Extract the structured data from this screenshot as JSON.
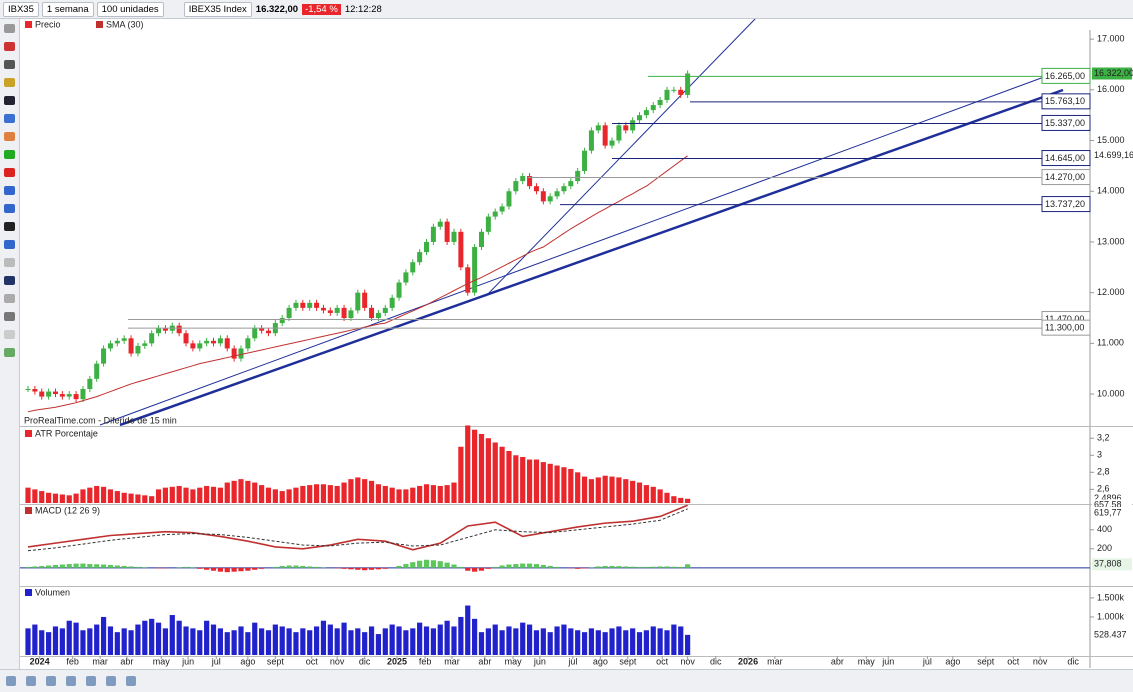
{
  "toolbar": {
    "symbol": "IBX35",
    "period": "1 semana",
    "units": "100 unidades",
    "instrument": "IBEX35 Index",
    "price": "16.322,00",
    "change": "-1,54 %",
    "time": "12:12:28"
  },
  "time_axis": {
    "xlim": [
      0,
      155
    ],
    "xticks": [
      {
        "value": 1.7,
        "label": "2024"
      },
      {
        "value": 6.5,
        "label": "feb"
      },
      {
        "value": 10.5,
        "label": "mar"
      },
      {
        "value": 14.4,
        "label": "abr"
      },
      {
        "value": 19.4,
        "label": "may"
      },
      {
        "value": 23.3,
        "label": "jun"
      },
      {
        "value": 27.4,
        "label": "jul"
      },
      {
        "value": 32,
        "label": "ago"
      },
      {
        "value": 36,
        "label": "sept"
      },
      {
        "value": 41.3,
        "label": "oct"
      },
      {
        "value": 45,
        "label": "nov"
      },
      {
        "value": 49,
        "label": "dic"
      },
      {
        "value": 53.7,
        "label": "2025"
      },
      {
        "value": 57.8,
        "label": "feb"
      },
      {
        "value": 61.7,
        "label": "mar"
      },
      {
        "value": 66.5,
        "label": "abr"
      },
      {
        "value": 70.6,
        "label": "may"
      },
      {
        "value": 74.5,
        "label": "jun"
      },
      {
        "value": 79.3,
        "label": "jul"
      },
      {
        "value": 83.3,
        "label": "ago"
      },
      {
        "value": 87.3,
        "label": "sept"
      },
      {
        "value": 92.3,
        "label": "oct"
      },
      {
        "value": 96,
        "label": "nov"
      },
      {
        "value": 100.1,
        "label": "dic"
      },
      {
        "value": 104.8,
        "label": "2026"
      },
      {
        "value": 108.7,
        "label": "mar"
      },
      {
        "value": 117.8,
        "label": "abr"
      },
      {
        "value": 122,
        "label": "may"
      },
      {
        "value": 125.2,
        "label": "jun"
      },
      {
        "value": 130.9,
        "label": "jul"
      },
      {
        "value": 134.6,
        "label": "ago"
      },
      {
        "value": 139.4,
        "label": "sept"
      },
      {
        "value": 143.4,
        "label": "oct"
      },
      {
        "value": 147.3,
        "label": "nov"
      },
      {
        "value": 152.1,
        "label": "dic"
      }
    ]
  },
  "chart_data": [
    {
      "type": "candlestick",
      "source": "ProRealTime.com - Diferido de 15 min",
      "ylim": [
        9390,
        17180
      ],
      "yticks": [
        {
          "value": 17000,
          "label": "17.000"
        },
        {
          "value": 16000,
          "label": "16.000"
        },
        {
          "value": 15000,
          "label": "15.000"
        },
        {
          "value": 14000,
          "label": "14.000"
        },
        {
          "value": 13000,
          "label": "13.000"
        },
        {
          "value": 12000,
          "label": "12.000"
        },
        {
          "value": 11000,
          "label": "11.000"
        },
        {
          "value": 10000,
          "label": "10.000"
        }
      ],
      "series": [
        {
          "name": "Precio",
          "color_up": "#3cb043",
          "color_down": "#e8262b",
          "values": [
            10100,
            10050,
            9950,
            10050,
            10000,
            9950,
            10000,
            9900,
            10100,
            10300,
            10600,
            10900,
            11000,
            11050,
            11100,
            10800,
            10950,
            11000,
            11200,
            11300,
            11250,
            11350,
            11200,
            11000,
            10900,
            11000,
            11050,
            11000,
            11100,
            10900,
            10700,
            10900,
            11100,
            11300,
            11250,
            11200,
            11400,
            11500,
            11700,
            11800,
            11700,
            11800,
            11700,
            11650,
            11600,
            11700,
            11500,
            11650,
            12000,
            11700,
            11500,
            11600,
            11700,
            11900,
            12200,
            12400,
            12600,
            12800,
            13000,
            13300,
            13400,
            13000,
            13200,
            12500,
            12000,
            12900,
            13200,
            13500,
            13600,
            13700,
            14000,
            14200,
            14300,
            14100,
            14000,
            13800,
            13900,
            14000,
            14100,
            14200,
            14400,
            14800,
            15200,
            15300,
            14900,
            15000,
            15300,
            15200,
            15400,
            15500,
            15600,
            15700,
            15800,
            16000,
            16000,
            15900,
            16322
          ]
        },
        {
          "name": "SMA (30)",
          "color": "#c0302f",
          "last_value_label": "14.699,16",
          "values": [
            9650,
            9680,
            9700,
            9720,
            9740,
            9770,
            9800,
            9830,
            9870,
            9910,
            9950,
            10000,
            10050,
            10100,
            10150,
            10200,
            10240,
            10280,
            10320,
            10360,
            10400,
            10440,
            10480,
            10520,
            10560,
            10600,
            10630,
            10660,
            10690,
            10720,
            10750,
            10780,
            10810,
            10840,
            10870,
            10900,
            10930,
            10960,
            10990,
            11020,
            11050,
            11080,
            11110,
            11140,
            11170,
            11200,
            11230,
            11260,
            11290,
            11320,
            11350,
            11380,
            11400,
            11460,
            11520,
            11580,
            11640,
            11700,
            11760,
            11830,
            11900,
            11970,
            12040,
            12110,
            12180,
            12240,
            12300,
            12370,
            12440,
            12510,
            12580,
            12650,
            12720,
            12790,
            12850,
            12900,
            12990,
            13080,
            13170,
            13260,
            13340,
            13420,
            13500,
            13580,
            13650,
            13730,
            13800,
            13880,
            13950,
            14030,
            14100,
            14200,
            14300,
            14400,
            14500,
            14600,
            14699.16
          ]
        }
      ],
      "levels": [
        {
          "value": 16265,
          "label": "16.265,00",
          "color": "#3cb043"
        },
        {
          "value": 15763.1,
          "label": "15.763,10",
          "color": "#1a237e"
        },
        {
          "value": 15337,
          "label": "15.337,00",
          "color": "#1a237e"
        },
        {
          "value": 14645,
          "label": "14.645,00",
          "color": "#1a237e"
        },
        {
          "value": 14270,
          "label": "14.270,00",
          "color": "#9a9a9a"
        },
        {
          "value": 13737.2,
          "label": "13.737,20",
          "color": "#1a237e"
        },
        {
          "value": 11470,
          "label": "11.470,00",
          "color": "#9a9a9a"
        },
        {
          "value": 11300,
          "label": "11.300,00",
          "color": "#9a9a9a"
        }
      ]
    },
    {
      "type": "bar",
      "name": "ATR Porcentaje",
      "color": "#e8262b",
      "last_value_label": "2,4896",
      "ylim": [
        2.44,
        3.32
      ],
      "yticks": [
        {
          "value": 3.2,
          "label": "3,2"
        },
        3,
        {
          "value": 2.8,
          "label": "2,8"
        },
        {
          "value": 2.6,
          "label": "2,6"
        }
      ],
      "values": [
        2.62,
        2.6,
        2.58,
        2.56,
        2.55,
        2.54,
        2.53,
        2.55,
        2.6,
        2.62,
        2.64,
        2.63,
        2.6,
        2.58,
        2.56,
        2.55,
        2.54,
        2.53,
        2.52,
        2.6,
        2.62,
        2.63,
        2.64,
        2.62,
        2.6,
        2.62,
        2.64,
        2.63,
        2.62,
        2.68,
        2.7,
        2.72,
        2.7,
        2.68,
        2.65,
        2.62,
        2.6,
        2.58,
        2.6,
        2.62,
        2.64,
        2.65,
        2.66,
        2.66,
        2.65,
        2.64,
        2.68,
        2.72,
        2.74,
        2.72,
        2.7,
        2.66,
        2.64,
        2.62,
        2.6,
        2.6,
        2.62,
        2.64,
        2.66,
        2.65,
        2.64,
        2.65,
        2.68,
        3.1,
        3.35,
        3.3,
        3.25,
        3.2,
        3.15,
        3.1,
        3.05,
        3.0,
        2.98,
        2.95,
        2.95,
        2.92,
        2.9,
        2.88,
        2.86,
        2.84,
        2.8,
        2.75,
        2.72,
        2.74,
        2.76,
        2.75,
        2.74,
        2.72,
        2.7,
        2.68,
        2.65,
        2.63,
        2.6,
        2.56,
        2.52,
        2.5,
        2.4896
      ]
    },
    {
      "type": "macd",
      "name": "MACD (12 26 9)",
      "ylim": [
        -180,
        650
      ],
      "yticks": [
        400,
        200
      ],
      "x": [
        0,
        4,
        8,
        12,
        16,
        20,
        24,
        28,
        32,
        36,
        40,
        44,
        48,
        52,
        56,
        60,
        64,
        68,
        72,
        76,
        80,
        84,
        88,
        92,
        96
      ],
      "series": [
        {
          "color": "#c0302f",
          "last_value_label": "657,58",
          "values": [
            220,
            260,
            300,
            340,
            360,
            380,
            370,
            330,
            280,
            220,
            200,
            240,
            300,
            280,
            190,
            260,
            440,
            480,
            330,
            380,
            430,
            470,
            490,
            540,
            657.58
          ]
        },
        {
          "color": "#333333",
          "dash": true,
          "last_value_label": "619,77",
          "values": [
            180,
            210,
            250,
            290,
            320,
            350,
            360,
            350,
            320,
            280,
            240,
            230,
            260,
            270,
            230,
            240,
            320,
            400,
            380,
            370,
            400,
            430,
            460,
            500,
            619.77
          ]
        }
      ],
      "histogram": {
        "color": "#5cc85c",
        "color_neg": "#e8262b",
        "last_value_label": "37,808",
        "values": [
          10,
          15,
          20,
          25,
          30,
          35,
          40,
          45,
          45,
          40,
          38,
          35,
          30,
          25,
          20,
          15,
          10,
          5,
          0,
          -5,
          -5,
          0,
          5,
          10,
          5,
          -10,
          -20,
          -30,
          -40,
          -45,
          -40,
          -35,
          -30,
          -20,
          -10,
          0,
          10,
          20,
          25,
          25,
          20,
          15,
          10,
          5,
          0,
          -5,
          -10,
          -15,
          -20,
          -25,
          -20,
          -15,
          -10,
          0,
          20,
          40,
          60,
          75,
          85,
          80,
          70,
          55,
          35,
          10,
          -30,
          -40,
          -30,
          -10,
          10,
          25,
          35,
          40,
          45,
          45,
          40,
          30,
          20,
          10,
          0,
          -5,
          -10,
          -5,
          5,
          15,
          20,
          20,
          18,
          15,
          12,
          10,
          10,
          12,
          15,
          15,
          12,
          10,
          37.808
        ]
      }
    },
    {
      "type": "bar",
      "name": "Volumen",
      "color": "#2222cc",
      "last_value_label": "528.437",
      "ylim": [
        0,
        1760
      ],
      "yticks": [
        {
          "value": 1500,
          "label": "1.500k"
        },
        {
          "value": 1000,
          "label": "1.000k"
        }
      ],
      "values": [
        700,
        800,
        650,
        600,
        750,
        700,
        900,
        850,
        650,
        700,
        800,
        1000,
        750,
        600,
        700,
        650,
        800,
        900,
        950,
        850,
        700,
        1050,
        900,
        750,
        700,
        650,
        900,
        800,
        700,
        600,
        650,
        750,
        600,
        850,
        700,
        650,
        800,
        750,
        700,
        600,
        700,
        650,
        750,
        900,
        800,
        700,
        850,
        650,
        700,
        600,
        750,
        550,
        700,
        800,
        750,
        650,
        700,
        850,
        750,
        700,
        800,
        900,
        750,
        1000,
        1300,
        950,
        600,
        700,
        800,
        650,
        750,
        700,
        850,
        800,
        650,
        700,
        600,
        750,
        800,
        700,
        650,
        600,
        700,
        650,
        600,
        700,
        750,
        650,
        700,
        600,
        650,
        750,
        700,
        650,
        800,
        750,
        528.437
      ]
    }
  ]
}
